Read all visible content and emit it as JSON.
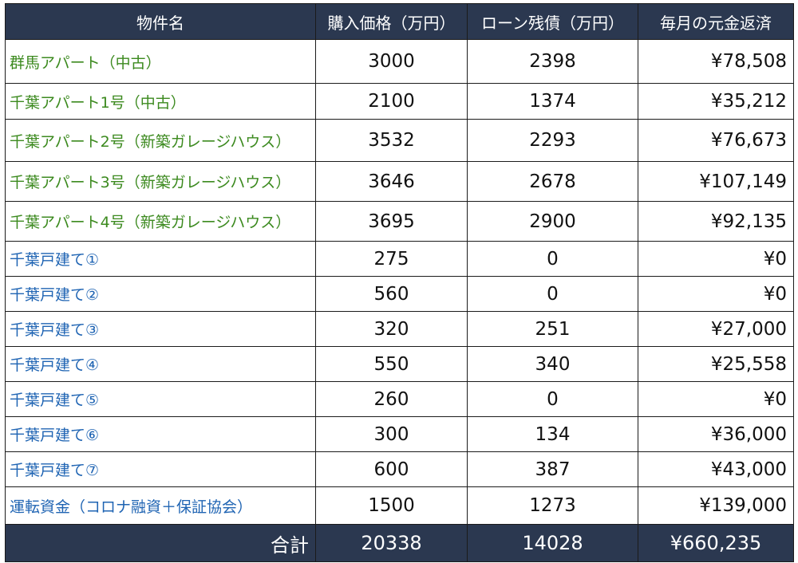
{
  "columns": [
    "物件名",
    "購入価格（万円）",
    "ローン残債（万円）",
    "毎月の元金返済"
  ],
  "rows": [
    {
      "name": "群馬アパート（中古）",
      "price": "3000",
      "loan": "2398",
      "monthly": "¥78,508",
      "type": "apartment"
    },
    {
      "name": "千葉アパート1号（中古）",
      "price": "2100",
      "loan": "1374",
      "monthly": "¥35,212",
      "type": "apartment"
    },
    {
      "name": "千葉アパート2号（新築ガレージハウス）",
      "price": "3532",
      "loan": "2293",
      "monthly": "¥76,673",
      "type": "apartment"
    },
    {
      "name": "千葉アパート3号（新築ガレージハウス）",
      "price": "3646",
      "loan": "2678",
      "monthly": "¥107,149",
      "type": "apartment"
    },
    {
      "name": "千葉アパート4号（新築ガレージハウス）",
      "price": "3695",
      "loan": "2900",
      "monthly": "¥92,135",
      "type": "apartment"
    },
    {
      "name": "千葉戸建て①",
      "price": "275",
      "loan": "0",
      "monthly": "¥0",
      "type": "house"
    },
    {
      "name": "千葉戸建て②",
      "price": "560",
      "loan": "0",
      "monthly": "¥0",
      "type": "house"
    },
    {
      "name": "千葉戸建て③",
      "price": "320",
      "loan": "251",
      "monthly": "¥27,000",
      "type": "house"
    },
    {
      "name": "千葉戸建て④",
      "price": "550",
      "loan": "340",
      "monthly": "¥25,558",
      "type": "house"
    },
    {
      "name": "千葉戸建て⑤",
      "price": "260",
      "loan": "0",
      "monthly": "¥0",
      "type": "house"
    },
    {
      "name": "千葉戸建て⑥",
      "price": "300",
      "loan": "134",
      "monthly": "¥36,000",
      "type": "house"
    },
    {
      "name": "千葉戸建て⑦",
      "price": "600",
      "loan": "387",
      "monthly": "¥43,000",
      "type": "house"
    },
    {
      "name": "運転資金（コロナ融資＋保証協会）",
      "price": "1500",
      "loan": "1273",
      "monthly": "¥139,000",
      "type": "house"
    }
  ],
  "total": {
    "label": "合計",
    "price": "20338",
    "loan": "14028",
    "monthly": "¥660,235"
  },
  "colors": {
    "header_bg": "#2b3850",
    "apartment_text": "#3c8a1f",
    "house_text": "#1f64b3"
  }
}
